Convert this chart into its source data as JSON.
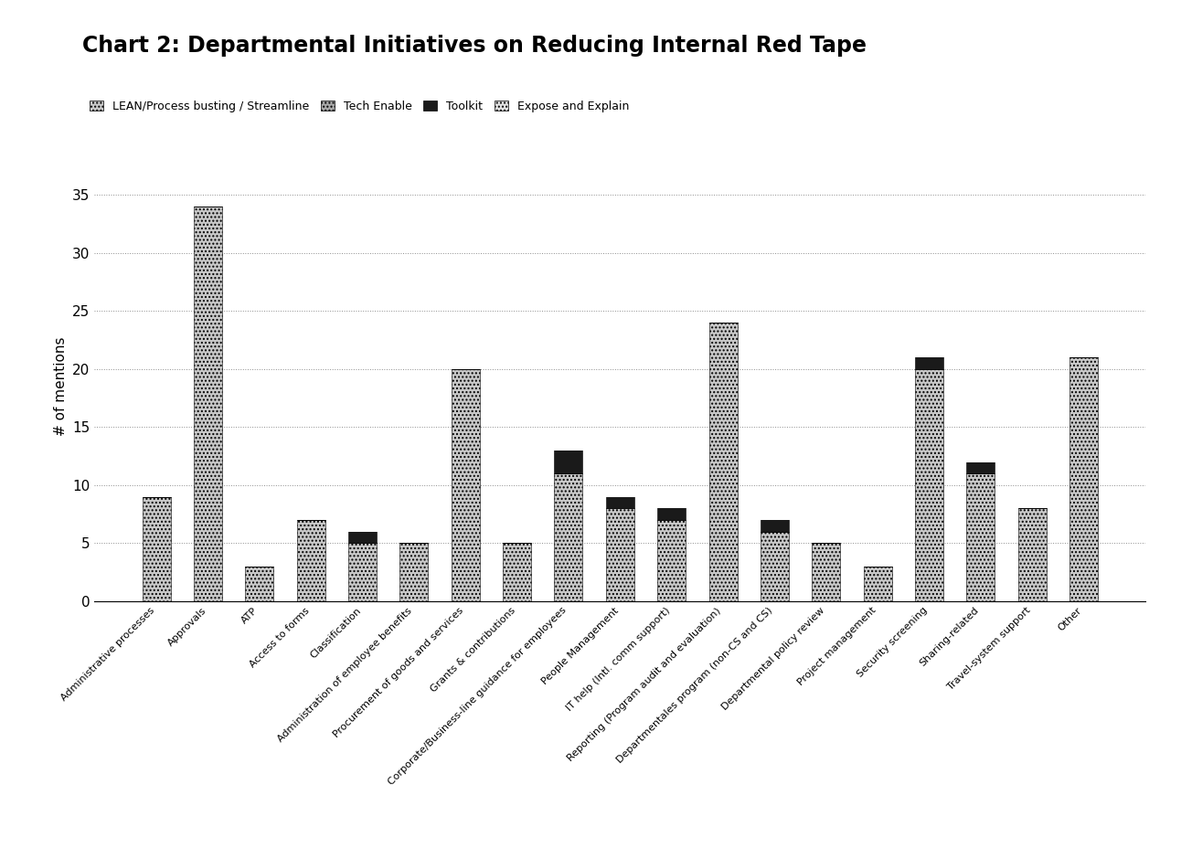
{
  "title": "Chart 2: Departmental Initiatives on Reducing Internal Red Tape",
  "ylabel": "# of mentions",
  "categories": [
    "Administrative processes",
    "Approvals",
    "ATP",
    "Access to forms",
    "Classification",
    "Administration of employee benefits",
    "Procurement of goods and services",
    "Grants & contributions",
    "Corporate/Business-line guidance for employees",
    "People Management",
    "IT help (Intl. comm support)",
    "Reporting (Program audit and evaluation)",
    "Departmentales program (non-CS and CS)",
    "Departmental policy review",
    "Project management",
    "Security screening",
    "Sharing-related",
    "Travel-system support",
    "Other"
  ],
  "lean_vals": [
    9,
    34,
    3,
    7,
    5,
    5,
    20,
    5,
    11,
    8,
    7,
    24,
    6,
    5,
    3,
    20,
    11,
    8,
    21
  ],
  "tech_vals": [
    0,
    0,
    0,
    0,
    0,
    0,
    0,
    0,
    0,
    0,
    0,
    0,
    0,
    0,
    0,
    0,
    0,
    0,
    0
  ],
  "toolkit_vals": [
    0,
    0,
    0,
    0,
    1,
    0,
    0,
    0,
    2,
    1,
    1,
    0,
    1,
    0,
    0,
    1,
    1,
    0,
    0
  ],
  "expose_vals": [
    0,
    0,
    0,
    0,
    0,
    0,
    0,
    0,
    0,
    0,
    0,
    0,
    0,
    0,
    0,
    0,
    0,
    0,
    0
  ],
  "ylim": [
    0,
    37
  ],
  "yticks": [
    0,
    5,
    10,
    15,
    20,
    25,
    30,
    35
  ],
  "legend_labels": [
    "LEAN/Process busting / Streamline",
    "Tech Enable",
    "Toolkit",
    "Expose and Explain"
  ],
  "lean_color": "#C8C8C8",
  "lean_hatch": "....",
  "tech_color": "#A8A8A8",
  "tech_hatch": "....",
  "toolkit_color": "#1a1a1a",
  "toolkit_hatch": "",
  "expose_color": "#E0E0E0",
  "expose_hatch": "....",
  "background_color": "#FFFFFF",
  "title_fontsize": 17,
  "ylabel_fontsize": 11,
  "tick_fontsize": 11,
  "xtick_fontsize": 8
}
